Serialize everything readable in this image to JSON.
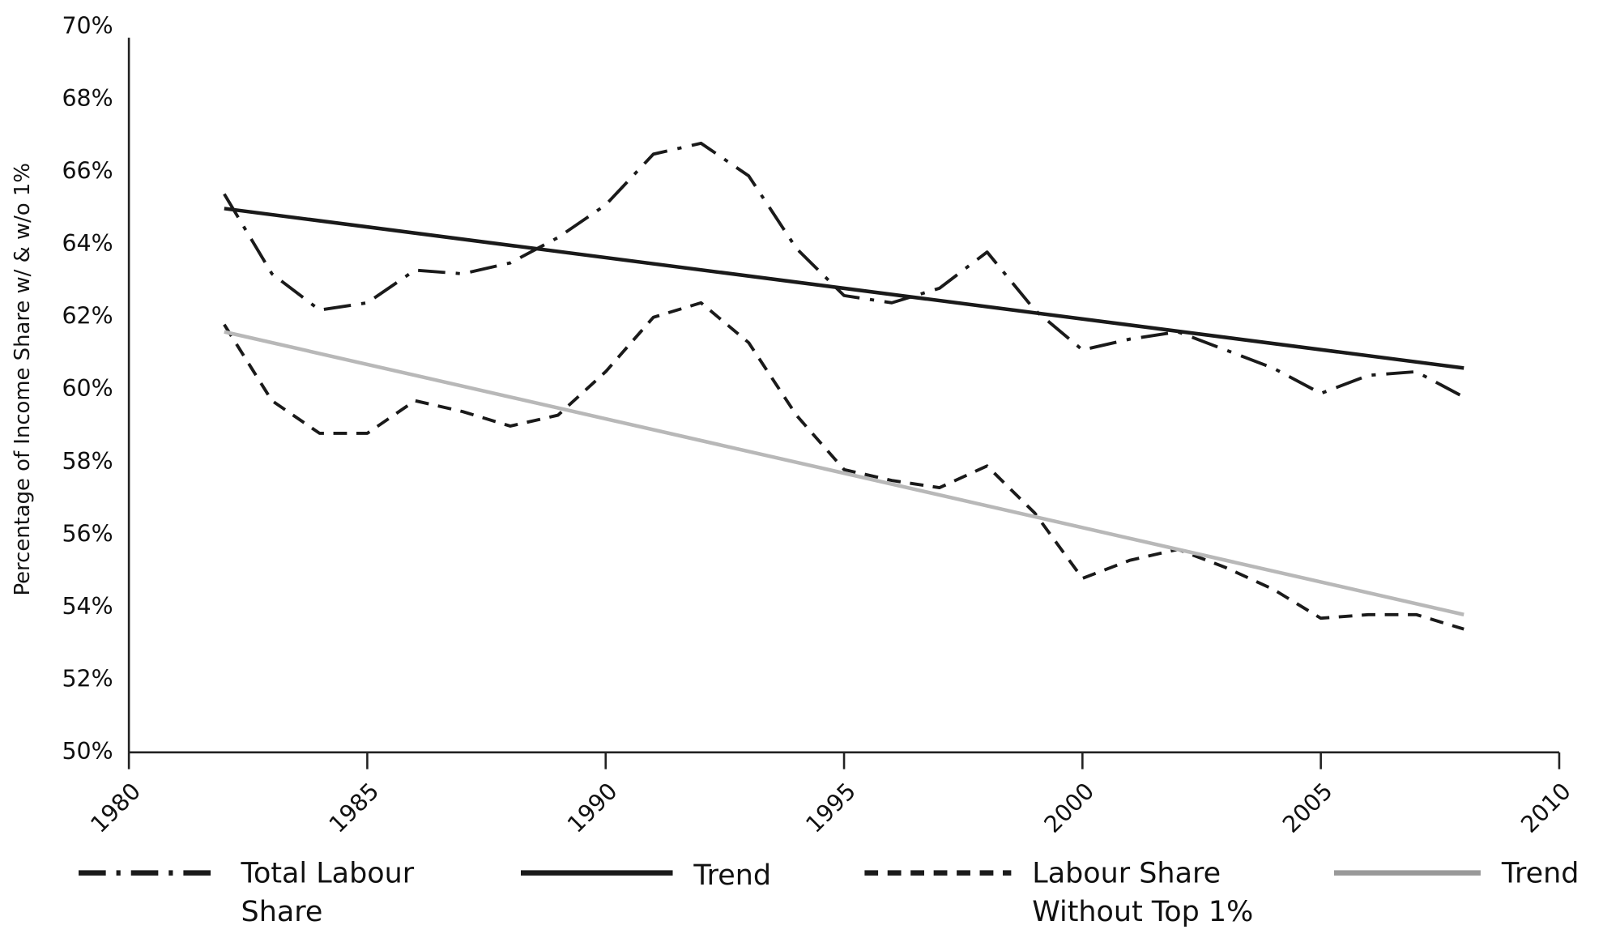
{
  "chart_data": {
    "type": "line",
    "y_label": "Percentage of Income Share w/ & w/o 1%",
    "xlim": [
      1980,
      2010
    ],
    "xticks": [
      1980,
      1985,
      1990,
      1995,
      2000,
      2005,
      2010
    ],
    "ylim": [
      50,
      70
    ],
    "yticks": [
      {
        "value": 50,
        "label": "50%"
      },
      {
        "value": 52,
        "label": "52%"
      },
      {
        "value": 54,
        "label": "54%"
      },
      {
        "value": 56,
        "label": "56%"
      },
      {
        "value": 58,
        "label": "58%"
      },
      {
        "value": 60,
        "label": "60%"
      },
      {
        "value": 62,
        "label": "62%"
      },
      {
        "value": 64,
        "label": "64%"
      },
      {
        "value": 66,
        "label": "66%"
      },
      {
        "value": 68,
        "label": "68%"
      },
      {
        "value": 70,
        "label": "70%"
      }
    ],
    "grid": false,
    "legend": "bottom",
    "series": [
      {
        "name": "Total Labour Share",
        "color": "#1a1a1a",
        "style": "dash-dot",
        "x": [
          1982,
          1983,
          1984,
          1985,
          1986,
          1987,
          1988,
          1989,
          1990,
          1991,
          1992,
          1993,
          1994,
          1995,
          1996,
          1997,
          1998,
          1999,
          2000,
          2001,
          2002,
          2003,
          2004,
          2005,
          2006,
          2007,
          2008
        ],
        "values": [
          65.4,
          63.2,
          62.2,
          62.4,
          63.3,
          63.2,
          63.5,
          64.2,
          65.1,
          66.5,
          66.8,
          65.9,
          63.9,
          62.6,
          62.4,
          62.8,
          63.8,
          62.2,
          61.1,
          61.4,
          61.6,
          61.1,
          60.6,
          59.9,
          60.4,
          60.5,
          59.8
        ]
      },
      {
        "name": "Trend",
        "color": "#1a1a1a",
        "style": "solid",
        "x": [
          1982,
          2008
        ],
        "values": [
          65.0,
          60.6
        ]
      },
      {
        "name": "Labour Share Without Top 1%",
        "color": "#1a1a1a",
        "style": "dashed",
        "x": [
          1982,
          1983,
          1984,
          1985,
          1986,
          1987,
          1988,
          1989,
          1990,
          1991,
          1992,
          1993,
          1994,
          1995,
          1996,
          1997,
          1998,
          1999,
          2000,
          2001,
          2002,
          2003,
          2004,
          2005,
          2006,
          2007,
          2008
        ],
        "values": [
          61.8,
          59.7,
          58.8,
          58.8,
          59.7,
          59.4,
          59.0,
          59.3,
          60.5,
          62.0,
          62.4,
          61.3,
          59.3,
          57.8,
          57.5,
          57.3,
          57.9,
          56.6,
          54.8,
          55.3,
          55.6,
          55.1,
          54.5,
          53.7,
          53.8,
          53.8,
          53.4
        ]
      },
      {
        "name": "Trend",
        "color": "#b8b8b8",
        "style": "solid",
        "x": [
          1982,
          2008
        ],
        "values": [
          61.6,
          53.8
        ]
      }
    ]
  }
}
